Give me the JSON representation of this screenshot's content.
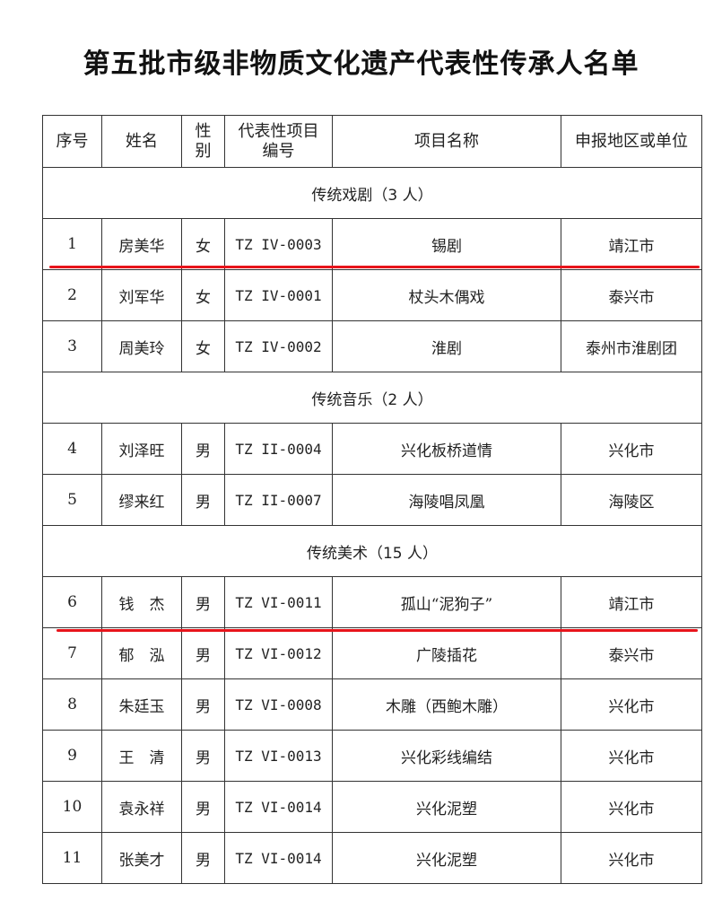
{
  "title": "第五批市级非物质文化遗产代表性传承人名单",
  "headers": [
    "序号",
    "姓名",
    "性别",
    "代表性项目编号",
    "项目名称",
    "申报地区或单位"
  ],
  "header_display": {
    "gender_line1": "性",
    "gender_line2": "别",
    "code_line1": "代表性项目",
    "code_line2": "编号"
  },
  "highlight_color": "#e8141b",
  "sections": [
    {
      "title": "传统戏剧（3 人）",
      "rows": [
        {
          "no": "1",
          "name": "房美华",
          "gender": "女",
          "code": "TZ IV-0003",
          "project": "锡剧",
          "unit": "靖江市",
          "underlined": true
        },
        {
          "no": "2",
          "name": "刘军华",
          "gender": "女",
          "code": "TZ IV-0001",
          "project": "杖头木偶戏",
          "unit": "泰兴市"
        },
        {
          "no": "3",
          "name": "周美玲",
          "gender": "女",
          "code": "TZ IV-0002",
          "project": "淮剧",
          "unit": "泰州市淮剧团"
        }
      ]
    },
    {
      "title": "传统音乐（2 人）",
      "rows": [
        {
          "no": "4",
          "name": "刘泽旺",
          "gender": "男",
          "code": "TZ II-0004",
          "project": "兴化板桥道情",
          "unit": "兴化市"
        },
        {
          "no": "5",
          "name": "缪来红",
          "gender": "男",
          "code": "TZ II-0007",
          "project": "海陵唱凤凰",
          "unit": "海陵区"
        }
      ]
    },
    {
      "title": "传统美术（15 人）",
      "rows": [
        {
          "no": "6",
          "name": "钱　杰",
          "gender": "男",
          "code": "TZ VI-0011",
          "project": "孤山“泥狗子”",
          "unit": "靖江市",
          "underlined": true
        },
        {
          "no": "7",
          "name": "郁　泓",
          "gender": "男",
          "code": "TZ VI-0012",
          "project": "广陵插花",
          "unit": "泰兴市"
        },
        {
          "no": "8",
          "name": "朱廷玉",
          "gender": "男",
          "code": "TZ VI-0008",
          "project": "木雕（西鲍木雕）",
          "unit": "兴化市"
        },
        {
          "no": "9",
          "name": "王　清",
          "gender": "男",
          "code": "TZ VI-0013",
          "project": "兴化彩线编结",
          "unit": "兴化市"
        },
        {
          "no": "10",
          "name": "袁永祥",
          "gender": "男",
          "code": "TZ VI-0014",
          "project": "兴化泥塑",
          "unit": "兴化市"
        },
        {
          "no": "11",
          "name": "张美才",
          "gender": "男",
          "code": "TZ VI-0014",
          "project": "兴化泥塑",
          "unit": "兴化市"
        }
      ]
    }
  ]
}
